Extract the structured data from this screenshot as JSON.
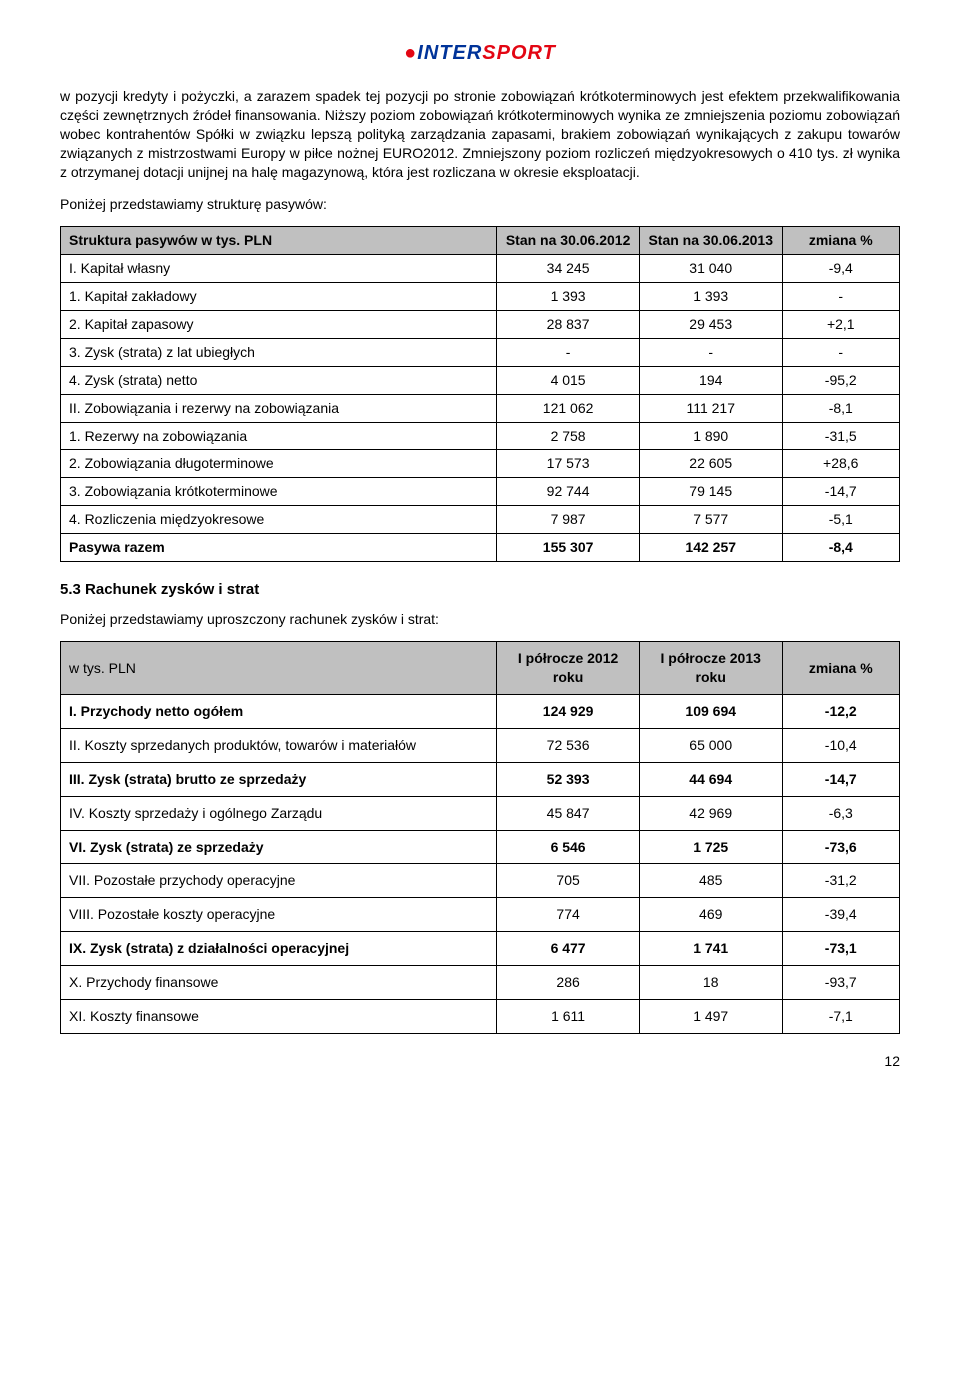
{
  "logo": {
    "dot": "●",
    "inter": "INTER",
    "sport": "SPORT"
  },
  "para1": "w pozycji kredyty i pożyczki, a zarazem spadek tej pozycji po stronie zobowiązań krótkoterminowych jest efektem przekwalifikowania części zewnętrznych źródeł finansowania. Niższy poziom zobowiązań krótkoterminowych wynika ze zmniejszenia poziomu zobowiązań wobec kontrahentów Spółki w związku lepszą polityką zarządzania zapasami, brakiem zobowiązań wynikających z zakupu towarów związanych z mistrzostwami Europy w piłce nożnej EURO2012. Zmniejszony poziom rozliczeń międzyokresowych o 410 tys. zł wynika z otrzymanej dotacji unijnej na halę magazynową, która jest rozliczana w okresie eksploatacji.",
  "sub1": "Poniżej przedstawiamy strukturę pasywów:",
  "table1": {
    "headers": [
      "Struktura pasywów  w tys. PLN",
      "Stan na 30.06.2012",
      "Stan na 30.06.2013",
      "zmiana %"
    ],
    "rows": [
      {
        "label": "I. Kapitał własny",
        "c1": "34 245",
        "c2": "31 040",
        "c3": "-9,4",
        "bold": false
      },
      {
        "label": "1. Kapitał zakładowy",
        "c1": "1 393",
        "c2": "1 393",
        "c3": "-",
        "bold": false
      },
      {
        "label": "2. Kapitał zapasowy",
        "c1": "28 837",
        "c2": "29 453",
        "c3": "+2,1",
        "bold": false
      },
      {
        "label": "3. Zysk (strata) z lat ubiegłych",
        "c1": "-",
        "c2": "-",
        "c3": "-",
        "bold": false
      },
      {
        "label": "4. Zysk (strata) netto",
        "c1": "4 015",
        "c2": "194",
        "c3": "-95,2",
        "bold": false
      },
      {
        "label": "II. Zobowiązania i rezerwy na zobowiązania",
        "c1": "121 062",
        "c2": "111 217",
        "c3": "-8,1",
        "bold": false
      },
      {
        "label": "1. Rezerwy na zobowiązania",
        "c1": "2 758",
        "c2": "1 890",
        "c3": "-31,5",
        "bold": false
      },
      {
        "label": "2. Zobowiązania  długoterminowe",
        "c1": "17 573",
        "c2": "22 605",
        "c3": "+28,6",
        "bold": false
      },
      {
        "label": "3. Zobowiązania krótkoterminowe",
        "c1": "92 744",
        "c2": "79 145",
        "c3": "-14,7",
        "bold": false
      },
      {
        "label": "4. Rozliczenia międzyokresowe",
        "c1": "7 987",
        "c2": "7 577",
        "c3": "-5,1",
        "bold": false
      },
      {
        "label": "Pasywa razem",
        "c1": "155 307",
        "c2": "142 257",
        "c3": "-8,4",
        "bold": true
      }
    ],
    "col_widths": [
      "52%",
      "17%",
      "17%",
      "14%"
    ]
  },
  "heading2": "5.3 Rachunek zysków i strat",
  "sub2": "Poniżej przedstawiamy uproszczony rachunek zysków i strat:",
  "table2": {
    "headers": [
      "w tys. PLN",
      "I półrocze 2012 roku",
      "I półrocze 2013 roku",
      "zmiana %"
    ],
    "rows": [
      {
        "label": "I. Przychody netto ogółem",
        "c1": "124 929",
        "c2": "109 694",
        "c3": "-12,2",
        "bold": true
      },
      {
        "label": "II. Koszty sprzedanych produktów, towarów i materiałów",
        "c1": "72 536",
        "c2": "65 000",
        "c3": "-10,4",
        "bold": false
      },
      {
        "label": "III. Zysk (strata) brutto ze sprzedaży",
        "c1": "52 393",
        "c2": "44 694",
        "c3": "-14,7",
        "bold": true
      },
      {
        "label": "IV. Koszty sprzedaży i ogólnego Zarządu",
        "c1": "45 847",
        "c2": "42 969",
        "c3": "-6,3",
        "bold": false
      },
      {
        "label": "VI. Zysk (strata) ze sprzedaży",
        "c1": "6 546",
        "c2": "1 725",
        "c3": "-73,6",
        "bold": true
      },
      {
        "label": "VII. Pozostałe przychody operacyjne",
        "c1": "705",
        "c2": "485",
        "c3": "-31,2",
        "bold": false
      },
      {
        "label": "VIII. Pozostałe  koszty operacyjne",
        "c1": "774",
        "c2": "469",
        "c3": "-39,4",
        "bold": false
      },
      {
        "label": "IX. Zysk (strata) z działalności operacyjnej",
        "c1": "6 477",
        "c2": "1 741",
        "c3": "-73,1",
        "bold": true
      },
      {
        "label": "X. Przychody finansowe",
        "c1": "286",
        "c2": "18",
        "c3": "-93,7",
        "bold": false
      },
      {
        "label": "XI. Koszty finansowe",
        "c1": "1 611",
        "c2": "1 497",
        "c3": "-7,1",
        "bold": false
      }
    ],
    "col_widths": [
      "52%",
      "17%",
      "17%",
      "14%"
    ]
  },
  "page_num": "12"
}
